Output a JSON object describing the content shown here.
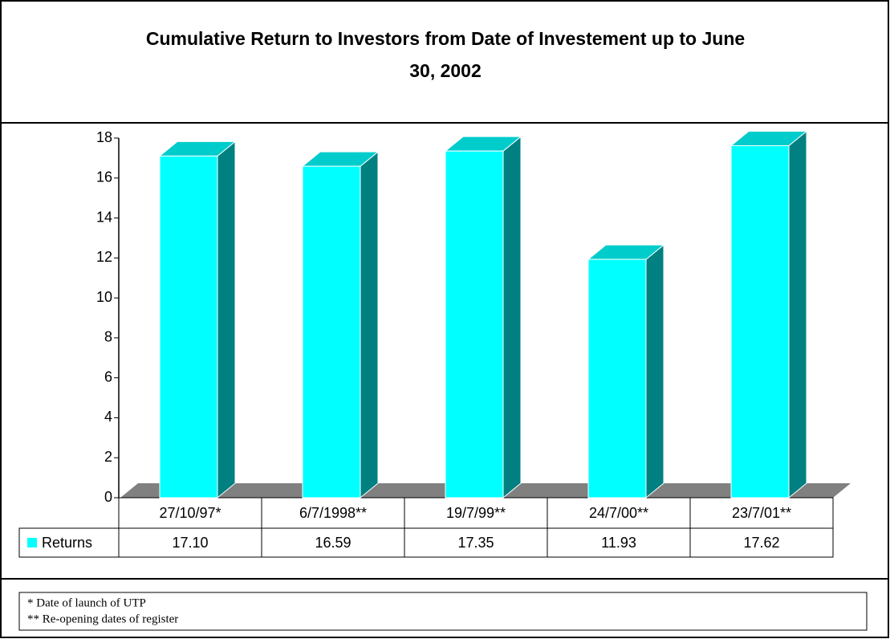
{
  "chart_data": {
    "type": "bar3d",
    "title": "Cumulative Return to Investors from Date of Investement up to June 30, 2002",
    "categories": [
      "27/10/97*",
      "6/7/1998**",
      "19/7/99**",
      "24/7/00**",
      "23/7/01**"
    ],
    "series": [
      {
        "name": "Returns",
        "color": "#00ffff",
        "values": [
          17.1,
          16.59,
          17.35,
          11.93,
          17.62
        ],
        "value_labels": [
          "17.10",
          "16.59",
          "17.35",
          "11.93",
          "17.62"
        ]
      }
    ],
    "ylim": [
      0,
      18
    ],
    "yticks": [
      0,
      2,
      4,
      6,
      8,
      10,
      12,
      14,
      16,
      18
    ],
    "notes": [
      "* Date of launch of UTP",
      "** Re-opening dates of register"
    ]
  }
}
